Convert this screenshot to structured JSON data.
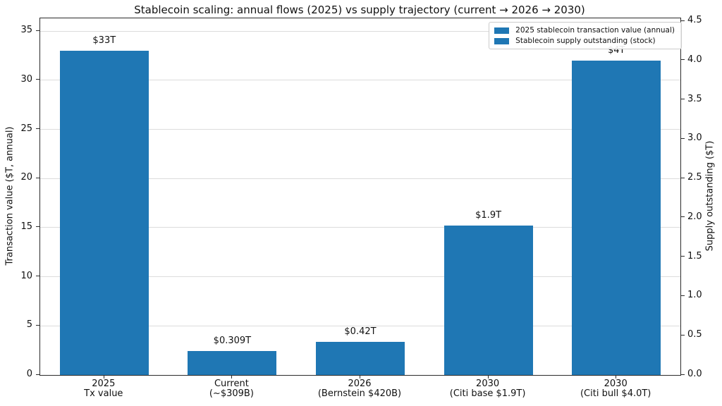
{
  "chart_data": {
    "type": "bar",
    "title": "Stablecoin scaling: annual flows (2025) vs supply trajectory (current → 2026 → 2030)",
    "categories": [
      "2025\nTx value",
      "Current\n(~$309B)",
      "2026\n(Bernstein $420B)",
      "2030\n(Citi base $1.9T)",
      "2030\n(Citi bull $4.0T)"
    ],
    "series": [
      {
        "name": "2025 stablecoin transaction value (annual)",
        "axis": "left",
        "color": "#1f77b4",
        "values": [
          33,
          null,
          null,
          null,
          null
        ]
      },
      {
        "name": "Stablecoin supply outstanding (stock)",
        "axis": "right",
        "color": "#1f77b4",
        "values": [
          null,
          0.309,
          0.42,
          1.9,
          4.0
        ]
      }
    ],
    "bar_value_labels": [
      "$33T",
      "$0.309T",
      "$0.42T",
      "$1.9T",
      "$4T"
    ],
    "left_axis": {
      "label": "Transaction value ($T, annual)",
      "ticks": [
        0,
        5,
        10,
        15,
        20,
        25,
        30,
        35
      ],
      "lim": [
        0,
        36.3
      ]
    },
    "right_axis": {
      "label": "Supply outstanding ($T)",
      "ticks": [
        0.0,
        0.5,
        1.0,
        1.5,
        2.0,
        2.5,
        3.0,
        3.5,
        4.0,
        4.5
      ],
      "lim": [
        0,
        4.5375
      ]
    },
    "grid": {
      "horizontal": true,
      "color": "#dcdcdc",
      "aligned_to": "left-axis ticks"
    },
    "legend": {
      "position": "upper-right",
      "swatch_color": "#1f77b4",
      "entries": [
        "2025 stablecoin transaction value (annual)",
        "Stablecoin supply outstanding (stock)"
      ]
    }
  }
}
